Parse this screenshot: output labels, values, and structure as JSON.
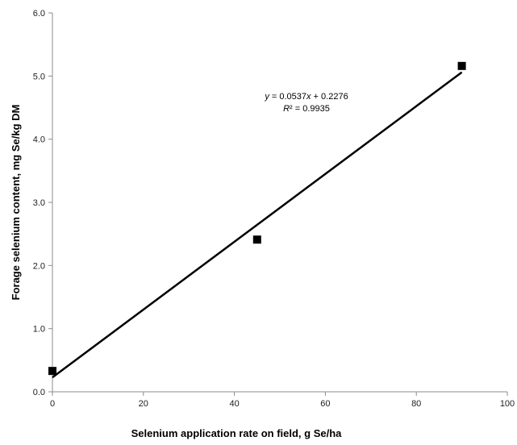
{
  "chart_data": {
    "type": "scatter",
    "xlabel": "Selenium application rate on field, g Se/ha",
    "ylabel": "Forage selenium content, mg Se/kg DM",
    "xlim": [
      0,
      100
    ],
    "ylim": [
      0,
      6
    ],
    "x_ticks": [
      "0",
      "20",
      "40",
      "60",
      "80",
      "100"
    ],
    "y_ticks": [
      "0.0",
      "1.0",
      "2.0",
      "3.0",
      "4.0",
      "5.0",
      "6.0"
    ],
    "grid": false,
    "legend": false,
    "series": [
      {
        "marker": "square",
        "color": "#000000",
        "points": [
          {
            "x": 0,
            "y": 0.33
          },
          {
            "x": 45,
            "y": 2.41
          },
          {
            "x": 90,
            "y": 5.16
          }
        ]
      }
    ],
    "trendline": {
      "slope": 0.0537,
      "intercept": 0.2276,
      "x_range": [
        0,
        90
      ],
      "color": "#000000"
    },
    "annotations": {
      "equation": "y = 0.0537x + 0.2276",
      "r_squared": "R² = 0.9935"
    }
  }
}
